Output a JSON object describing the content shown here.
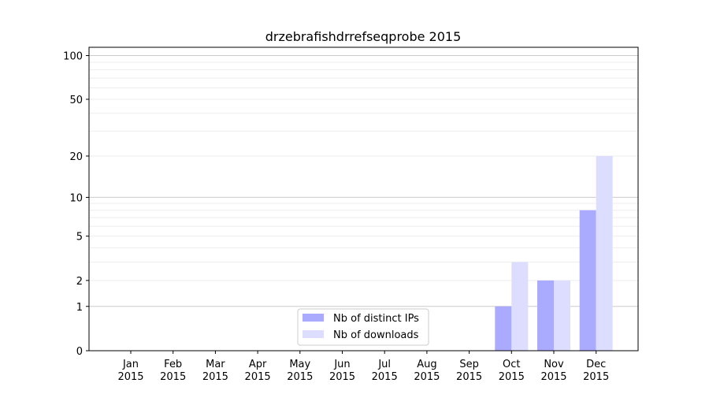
{
  "chart_data": {
    "type": "bar",
    "title": "drzebrafishdrrefseqprobe 2015",
    "xlabel": "",
    "ylabel": "",
    "yscale": "log(1+y)",
    "ylim": [
      0,
      114
    ],
    "yticks": [
      0,
      1,
      2,
      5,
      10,
      20,
      50,
      100
    ],
    "grid": true,
    "legend_position": "lower-center",
    "categories": [
      "Jan\n2015",
      "Feb\n2015",
      "Mar\n2015",
      "Apr\n2015",
      "May\n2015",
      "Jun\n2015",
      "Jul\n2015",
      "Aug\n2015",
      "Sep\n2015",
      "Oct\n2015",
      "Nov\n2015",
      "Dec\n2015"
    ],
    "series": [
      {
        "name": "Nb of distinct IPs",
        "color": "#aaaaff",
        "values": [
          0,
          0,
          0,
          0,
          0,
          0,
          0,
          0,
          0,
          1,
          2,
          8
        ]
      },
      {
        "name": "Nb of downloads",
        "color": "#ddddff",
        "values": [
          0,
          0,
          0,
          0,
          0,
          0,
          0,
          0,
          0,
          3,
          2,
          20
        ]
      }
    ]
  }
}
